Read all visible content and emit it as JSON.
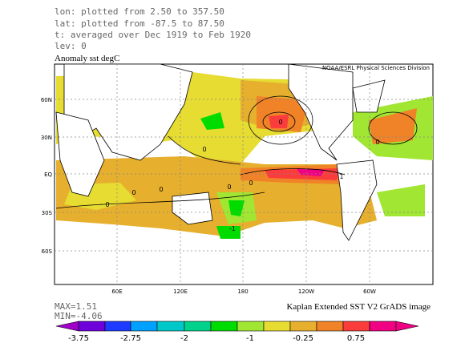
{
  "header": {
    "lines": [
      "lon: plotted from 2.50 to 357.50",
      "lat: plotted from -87.5 to 87.50",
      "t: averaged over Dec 1919 to Feb 1920",
      "lev: 0"
    ],
    "title": "Anomaly sst degC",
    "credit": "NOAA/ESRL Physical Sciences Division"
  },
  "map": {
    "lat_labels": [
      "60N",
      "30N",
      "EQ",
      "30S",
      "60S"
    ],
    "lon_labels": [
      "60E",
      "120E",
      "180",
      "120W",
      "60W"
    ],
    "contour_labels": [
      "0",
      "0",
      "0",
      "0",
      "0",
      "0",
      "0",
      "1",
      "-1",
      "0"
    ]
  },
  "footer": {
    "max": "MAX=1.51",
    "min": "MIN=-4.06",
    "caption": "Kaplan Extended SST V2 GrADS image"
  },
  "colorbar": {
    "labels": [
      "-3.75",
      "-2.75",
      "-2",
      "-1",
      "-0.25",
      "0.75"
    ]
  }
}
